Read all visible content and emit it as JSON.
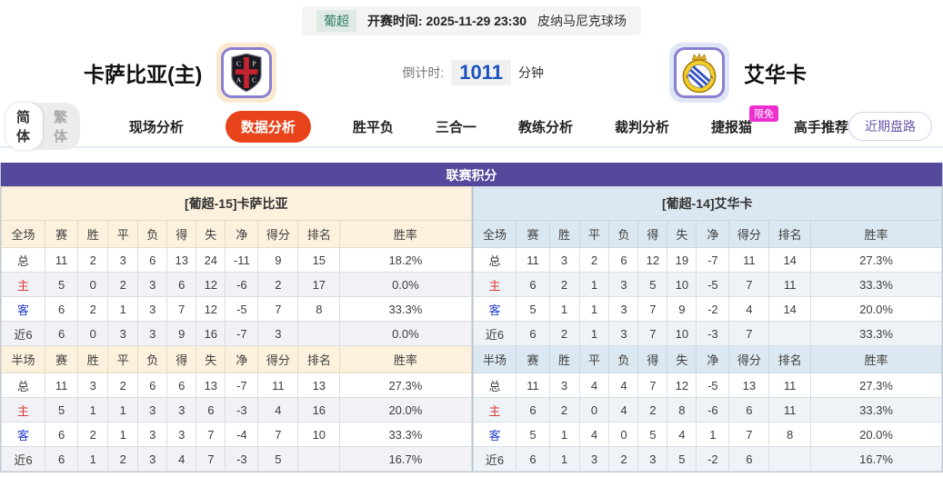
{
  "meta": {
    "league": "葡超",
    "kickoff_label": "开赛时间:",
    "kickoff_time": "2025-11-29 23:30",
    "venue": "皮纳马尼克球场"
  },
  "teams": {
    "home": {
      "name": "卡萨比亚(主)",
      "logo": "casa-pia-shield"
    },
    "away": {
      "name": "艾华卡",
      "logo": "alverca-crest"
    }
  },
  "countdown": {
    "label": "倒计时:",
    "value": "1011",
    "unit": "分钟"
  },
  "lang_toggle": {
    "simplified": "简体",
    "traditional": "繁体"
  },
  "nav": {
    "tabs": [
      {
        "label": "现场分析",
        "active": false
      },
      {
        "label": "数据分析",
        "active": true
      },
      {
        "label": "胜平负",
        "active": false
      },
      {
        "label": "三合一",
        "active": false
      },
      {
        "label": "教练分析",
        "active": false
      },
      {
        "label": "裁判分析",
        "active": false
      },
      {
        "label": "捷报猫",
        "active": false,
        "badge": "限免"
      },
      {
        "label": "高手推荐",
        "active": false
      }
    ],
    "recent_button": "近期盘路"
  },
  "section_title": "联赛积分",
  "standings": {
    "home": {
      "team_header": "[葡超-15]卡萨比亚",
      "full": {
        "columns": [
          "全场",
          "赛",
          "胜",
          "平",
          "负",
          "得",
          "失",
          "净",
          "得分",
          "排名",
          "胜率"
        ],
        "rows": [
          [
            "总",
            "11",
            "2",
            "3",
            "6",
            "13",
            "24",
            "-11",
            "9",
            "15",
            "18.2%"
          ],
          [
            "主",
            "5",
            "0",
            "2",
            "3",
            "6",
            "12",
            "-6",
            "2",
            "17",
            "0.0%"
          ],
          [
            "客",
            "6",
            "2",
            "1",
            "3",
            "7",
            "12",
            "-5",
            "7",
            "8",
            "33.3%"
          ],
          [
            "近6",
            "6",
            "0",
            "3",
            "3",
            "9",
            "16",
            "-7",
            "3",
            "",
            "0.0%"
          ]
        ]
      },
      "half": {
        "columns": [
          "半场",
          "赛",
          "胜",
          "平",
          "负",
          "得",
          "失",
          "净",
          "得分",
          "排名",
          "胜率"
        ],
        "rows": [
          [
            "总",
            "11",
            "3",
            "2",
            "6",
            "6",
            "13",
            "-7",
            "11",
            "13",
            "27.3%"
          ],
          [
            "主",
            "5",
            "1",
            "1",
            "3",
            "3",
            "6",
            "-3",
            "4",
            "16",
            "20.0%"
          ],
          [
            "客",
            "6",
            "2",
            "1",
            "3",
            "3",
            "7",
            "-4",
            "7",
            "10",
            "33.3%"
          ],
          [
            "近6",
            "6",
            "1",
            "2",
            "3",
            "4",
            "7",
            "-3",
            "5",
            "",
            "16.7%"
          ]
        ]
      }
    },
    "away": {
      "team_header": "[葡超-14]艾华卡",
      "full": {
        "columns": [
          "全场",
          "赛",
          "胜",
          "平",
          "负",
          "得",
          "失",
          "净",
          "得分",
          "排名",
          "胜率"
        ],
        "rows": [
          [
            "总",
            "11",
            "3",
            "2",
            "6",
            "12",
            "19",
            "-7",
            "11",
            "14",
            "27.3%"
          ],
          [
            "主",
            "6",
            "2",
            "1",
            "3",
            "5",
            "10",
            "-5",
            "7",
            "11",
            "33.3%"
          ],
          [
            "客",
            "5",
            "1",
            "1",
            "3",
            "7",
            "9",
            "-2",
            "4",
            "14",
            "20.0%"
          ],
          [
            "近6",
            "6",
            "2",
            "1",
            "3",
            "7",
            "10",
            "-3",
            "7",
            "",
            "33.3%"
          ]
        ]
      },
      "half": {
        "columns": [
          "半场",
          "赛",
          "胜",
          "平",
          "负",
          "得",
          "失",
          "净",
          "得分",
          "排名",
          "胜率"
        ],
        "rows": [
          [
            "总",
            "11",
            "3",
            "4",
            "4",
            "7",
            "12",
            "-5",
            "13",
            "11",
            "27.3%"
          ],
          [
            "主",
            "6",
            "2",
            "0",
            "4",
            "2",
            "8",
            "-6",
            "6",
            "11",
            "33.3%"
          ],
          [
            "客",
            "5",
            "1",
            "4",
            "0",
            "5",
            "4",
            "1",
            "7",
            "8",
            "20.0%"
          ],
          [
            "近6",
            "6",
            "1",
            "3",
            "2",
            "3",
            "5",
            "-2",
            "6",
            "",
            "16.7%"
          ]
        ]
      }
    }
  },
  "colors": {
    "accent_purple": "#55499d",
    "tab_active_orange": "#e8441c",
    "badge_pink": "#ee2fd0",
    "countdown_blue": "#1b53c0",
    "home_theme_cream": "#fbf1dd",
    "away_theme_blue": "#dce8f1",
    "home_label_red": "#d93a3a",
    "away_label_blue": "#2440cc",
    "league_tag_green": "#2e7d65"
  }
}
